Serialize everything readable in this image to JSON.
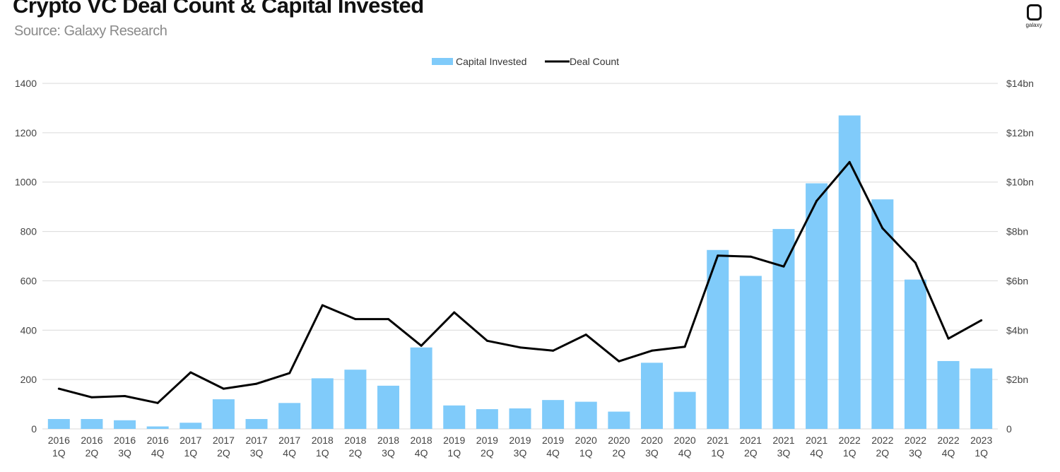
{
  "header": {
    "title": "Crypto VC Deal Count & Capital Invested",
    "subtitle": "Source: Galaxy Research",
    "logo_text": "galaxy"
  },
  "colors": {
    "bar": "#80cbfa",
    "line": "#000000",
    "grid": "#d9d9d9"
  },
  "chart_data": {
    "type": "bar",
    "title": "Crypto VC Deal Count & Capital Invested",
    "categories": [
      [
        "2016",
        "1Q"
      ],
      [
        "2016",
        "2Q"
      ],
      [
        "2016",
        "3Q"
      ],
      [
        "2016",
        "4Q"
      ],
      [
        "2017",
        "1Q"
      ],
      [
        "2017",
        "2Q"
      ],
      [
        "2017",
        "3Q"
      ],
      [
        "2017",
        "4Q"
      ],
      [
        "2018",
        "1Q"
      ],
      [
        "2018",
        "2Q"
      ],
      [
        "2018",
        "3Q"
      ],
      [
        "2018",
        "4Q"
      ],
      [
        "2019",
        "1Q"
      ],
      [
        "2019",
        "2Q"
      ],
      [
        "2019",
        "3Q"
      ],
      [
        "2019",
        "4Q"
      ],
      [
        "2020",
        "1Q"
      ],
      [
        "2020",
        "2Q"
      ],
      [
        "2020",
        "3Q"
      ],
      [
        "2020",
        "4Q"
      ],
      [
        "2021",
        "1Q"
      ],
      [
        "2021",
        "2Q"
      ],
      [
        "2021",
        "3Q"
      ],
      [
        "2021",
        "4Q"
      ],
      [
        "2022",
        "1Q"
      ],
      [
        "2022",
        "2Q"
      ],
      [
        "2022",
        "3Q"
      ],
      [
        "2022",
        "4Q"
      ],
      [
        "2023",
        "1Q"
      ]
    ],
    "series": [
      {
        "name": "Capital Invested",
        "type": "bar",
        "axis": "right",
        "unit": "$bn",
        "values": [
          0.4,
          0.4,
          0.35,
          0.1,
          0.25,
          1.2,
          0.4,
          1.05,
          2.05,
          2.4,
          1.75,
          3.3,
          0.95,
          0.8,
          0.83,
          1.17,
          1.1,
          0.7,
          2.68,
          1.5,
          7.25,
          6.2,
          8.1,
          9.95,
          12.7,
          9.3,
          6.05,
          2.75,
          2.45
        ]
      },
      {
        "name": "Deal Count",
        "type": "line",
        "axis": "left",
        "values": [
          163,
          128,
          133,
          105,
          229,
          163,
          183,
          226,
          501,
          445,
          445,
          337,
          472,
          357,
          330,
          317,
          382,
          274,
          317,
          333,
          702,
          698,
          658,
          924,
          1081,
          813,
          673,
          366,
          440
        ]
      }
    ],
    "left_axis": {
      "ticks": [
        "0",
        "200",
        "400",
        "600",
        "800",
        "1000",
        "1200",
        "1400"
      ],
      "ylim": [
        0,
        1400
      ]
    },
    "right_axis": {
      "ticks": [
        "0",
        "$2bn",
        "$4bn",
        "$6bn",
        "$8bn",
        "$10bn",
        "$12bn",
        "$14bn"
      ],
      "ylim": [
        0,
        14
      ]
    },
    "grid": true,
    "legend": {
      "placement": "top-center",
      "items": [
        "Capital Invested",
        "Deal Count"
      ]
    }
  }
}
